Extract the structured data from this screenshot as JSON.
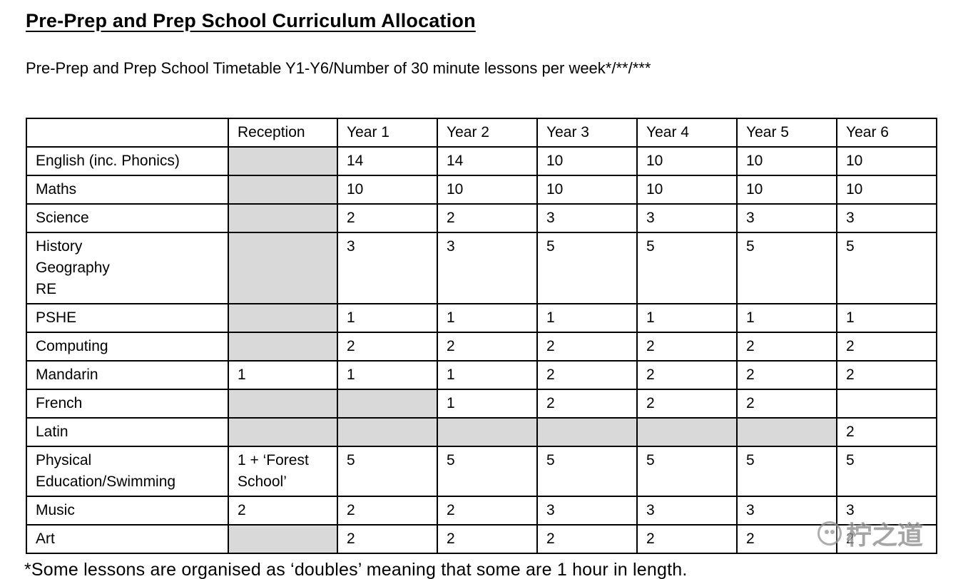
{
  "page": {
    "title": "Pre-Prep and Prep School Curriculum Allocation",
    "subtitle": "Pre-Prep and Prep School Timetable Y1-Y6/Number of 30 minute lessons per week*/**/***",
    "footnote": "*Some lessons are organised as ‘doubles’ meaning that some are 1 hour in length.",
    "watermark": {
      "logo_icon": "circle-logo",
      "text": "柠之道"
    }
  },
  "colors": {
    "shaded_cell": "#d9d9d9",
    "border": "#000000",
    "background": "#ffffff",
    "watermark_text": "#8f8f8f"
  },
  "table": {
    "columns": [
      "",
      "Reception",
      "Year 1",
      "Year 2",
      "Year 3",
      "Year 4",
      "Year 5",
      "Year 6"
    ],
    "rows": [
      {
        "subject": "English (inc. Phonics)",
        "cells": [
          {
            "v": "",
            "s": true
          },
          {
            "v": "14",
            "s": false
          },
          {
            "v": "14",
            "s": false
          },
          {
            "v": "10",
            "s": false
          },
          {
            "v": "10",
            "s": false
          },
          {
            "v": "10",
            "s": false
          },
          {
            "v": "10",
            "s": false
          }
        ]
      },
      {
        "subject": "Maths",
        "cells": [
          {
            "v": "",
            "s": true
          },
          {
            "v": "10",
            "s": false
          },
          {
            "v": "10",
            "s": false
          },
          {
            "v": "10",
            "s": false
          },
          {
            "v": "10",
            "s": false
          },
          {
            "v": "10",
            "s": false
          },
          {
            "v": "10",
            "s": false
          }
        ]
      },
      {
        "subject": "Science",
        "cells": [
          {
            "v": "",
            "s": true
          },
          {
            "v": "2",
            "s": false
          },
          {
            "v": "2",
            "s": false
          },
          {
            "v": "3",
            "s": false
          },
          {
            "v": "3",
            "s": false
          },
          {
            "v": "3",
            "s": false
          },
          {
            "v": "3",
            "s": false
          }
        ]
      },
      {
        "subject": "History\nGeography\nRE",
        "cells": [
          {
            "v": "",
            "s": true
          },
          {
            "v": "3",
            "s": false
          },
          {
            "v": "3",
            "s": false
          },
          {
            "v": "5",
            "s": false
          },
          {
            "v": "5",
            "s": false
          },
          {
            "v": "5",
            "s": false
          },
          {
            "v": "5",
            "s": false
          }
        ]
      },
      {
        "subject": "PSHE",
        "cells": [
          {
            "v": "",
            "s": true
          },
          {
            "v": "1",
            "s": false
          },
          {
            "v": "1",
            "s": false
          },
          {
            "v": "1",
            "s": false
          },
          {
            "v": "1",
            "s": false
          },
          {
            "v": "1",
            "s": false
          },
          {
            "v": "1",
            "s": false
          }
        ]
      },
      {
        "subject": "Computing",
        "cells": [
          {
            "v": "",
            "s": true
          },
          {
            "v": "2",
            "s": false
          },
          {
            "v": "2",
            "s": false
          },
          {
            "v": "2",
            "s": false
          },
          {
            "v": "2",
            "s": false
          },
          {
            "v": "2",
            "s": false
          },
          {
            "v": "2",
            "s": false
          }
        ]
      },
      {
        "subject": "Mandarin",
        "cells": [
          {
            "v": "1",
            "s": false
          },
          {
            "v": "1",
            "s": false
          },
          {
            "v": "1",
            "s": false
          },
          {
            "v": "2",
            "s": false
          },
          {
            "v": "2",
            "s": false
          },
          {
            "v": "2",
            "s": false
          },
          {
            "v": "2",
            "s": false
          }
        ]
      },
      {
        "subject": "French",
        "cells": [
          {
            "v": "",
            "s": true
          },
          {
            "v": "",
            "s": true
          },
          {
            "v": "1",
            "s": false
          },
          {
            "v": "2",
            "s": false
          },
          {
            "v": "2",
            "s": false
          },
          {
            "v": "2",
            "s": false
          },
          {
            "v": "",
            "s": false
          }
        ]
      },
      {
        "subject": "Latin",
        "cells": [
          {
            "v": "",
            "s": true
          },
          {
            "v": "",
            "s": true
          },
          {
            "v": "",
            "s": true
          },
          {
            "v": "",
            "s": true
          },
          {
            "v": "",
            "s": true
          },
          {
            "v": "",
            "s": true
          },
          {
            "v": "2",
            "s": false
          }
        ]
      },
      {
        "subject": "Physical\nEducation/Swimming",
        "cells": [
          {
            "v": "1 + ‘Forest\nSchool’",
            "s": false
          },
          {
            "v": "5",
            "s": false
          },
          {
            "v": "5",
            "s": false
          },
          {
            "v": "5",
            "s": false
          },
          {
            "v": "5",
            "s": false
          },
          {
            "v": "5",
            "s": false
          },
          {
            "v": "5",
            "s": false
          }
        ]
      },
      {
        "subject": "Music",
        "cells": [
          {
            "v": "2",
            "s": false
          },
          {
            "v": "2",
            "s": false
          },
          {
            "v": "2",
            "s": false
          },
          {
            "v": "3",
            "s": false
          },
          {
            "v": "3",
            "s": false
          },
          {
            "v": "3",
            "s": false
          },
          {
            "v": "3",
            "s": false
          }
        ]
      },
      {
        "subject": "Art",
        "cells": [
          {
            "v": "",
            "s": true
          },
          {
            "v": "2",
            "s": false
          },
          {
            "v": "2",
            "s": false
          },
          {
            "v": "2",
            "s": false
          },
          {
            "v": "2",
            "s": false
          },
          {
            "v": "2",
            "s": false
          },
          {
            "v": "2",
            "s": false
          }
        ]
      }
    ]
  }
}
